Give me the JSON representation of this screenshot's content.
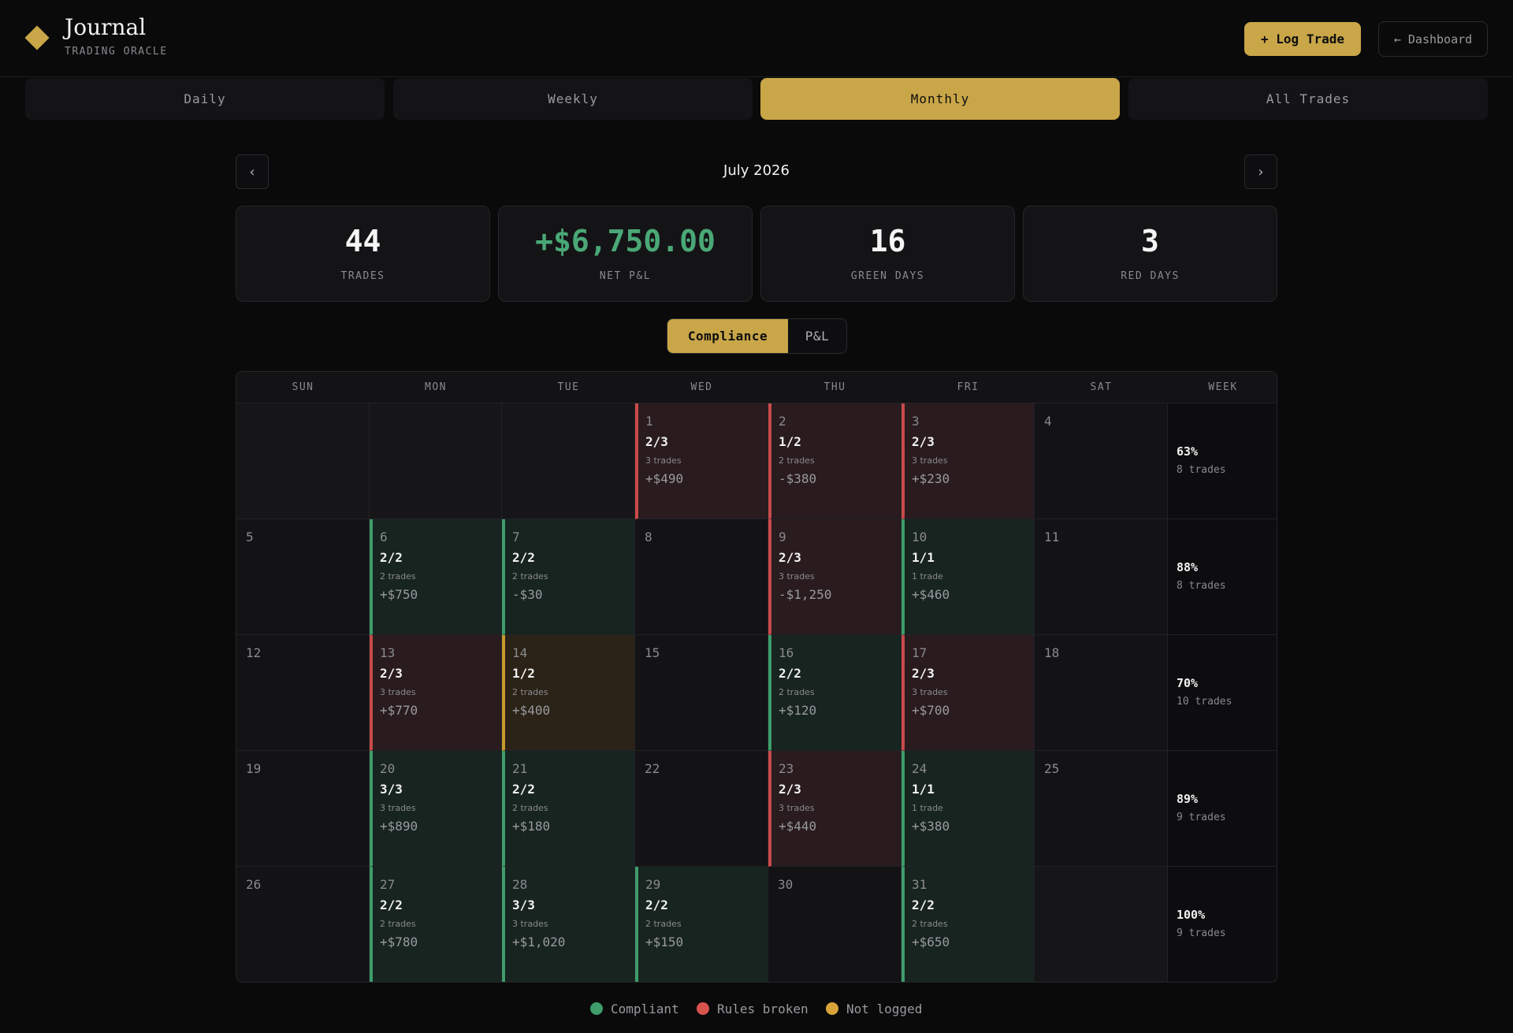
{
  "header": {
    "title": "Journal",
    "subtitle": "TRADING ORACLE",
    "log_trade_label": "+ Log Trade",
    "dashboard_label": "← Dashboard"
  },
  "tabs": [
    {
      "label": "Daily",
      "active": false
    },
    {
      "label": "Weekly",
      "active": false
    },
    {
      "label": "Monthly",
      "active": true
    },
    {
      "label": "All Trades",
      "active": false
    }
  ],
  "month": {
    "title": "July 2026",
    "prev_label": "‹",
    "next_label": "›"
  },
  "stats": [
    {
      "value": "44",
      "label": "TRADES",
      "tone": "white"
    },
    {
      "value": "+$6,750.00",
      "label": "NET P&L",
      "tone": "green"
    },
    {
      "value": "16",
      "label": "GREEN DAYS",
      "tone": "white"
    },
    {
      "value": "3",
      "label": "RED DAYS",
      "tone": "white"
    }
  ],
  "view_toggle": {
    "active_label": "Compliance",
    "inactive_label": "P&L"
  },
  "calendar": {
    "headers": [
      "SUN",
      "MON",
      "TUE",
      "WED",
      "THU",
      "FRI",
      "SAT",
      "WEEK"
    ],
    "weeks": [
      {
        "days": [
          {
            "day": "",
            "status": "blank"
          },
          {
            "day": "",
            "status": "blank"
          },
          {
            "day": "",
            "status": "blank"
          },
          {
            "day": "1",
            "status": "red",
            "ratio": "2/3",
            "trades": "3 trades",
            "pnl": "+$490"
          },
          {
            "day": "2",
            "status": "red",
            "ratio": "1/2",
            "trades": "2 trades",
            "pnl": "-$380"
          },
          {
            "day": "3",
            "status": "red",
            "ratio": "2/3",
            "trades": "3 trades",
            "pnl": "+$230"
          },
          {
            "day": "4",
            "status": "empty"
          }
        ],
        "summary": {
          "pct": "63%",
          "trades": "8 trades"
        }
      },
      {
        "days": [
          {
            "day": "5",
            "status": "empty"
          },
          {
            "day": "6",
            "status": "green",
            "ratio": "2/2",
            "trades": "2 trades",
            "pnl": "+$750"
          },
          {
            "day": "7",
            "status": "green",
            "ratio": "2/2",
            "trades": "2 trades",
            "pnl": "-$30"
          },
          {
            "day": "8",
            "status": "empty"
          },
          {
            "day": "9",
            "status": "red",
            "ratio": "2/3",
            "trades": "3 trades",
            "pnl": "-$1,250"
          },
          {
            "day": "10",
            "status": "green",
            "ratio": "1/1",
            "trades": "1 trade",
            "pnl": "+$460"
          },
          {
            "day": "11",
            "status": "empty"
          }
        ],
        "summary": {
          "pct": "88%",
          "trades": "8 trades"
        }
      },
      {
        "days": [
          {
            "day": "12",
            "status": "empty"
          },
          {
            "day": "13",
            "status": "red",
            "ratio": "2/3",
            "trades": "3 trades",
            "pnl": "+$770"
          },
          {
            "day": "14",
            "status": "amber",
            "ratio": "1/2",
            "trades": "2 trades",
            "pnl": "+$400"
          },
          {
            "day": "15",
            "status": "empty"
          },
          {
            "day": "16",
            "status": "green",
            "ratio": "2/2",
            "trades": "2 trades",
            "pnl": "+$120"
          },
          {
            "day": "17",
            "status": "red",
            "ratio": "2/3",
            "trades": "3 trades",
            "pnl": "+$700"
          },
          {
            "day": "18",
            "status": "empty"
          }
        ],
        "summary": {
          "pct": "70%",
          "trades": "10 trades"
        }
      },
      {
        "days": [
          {
            "day": "19",
            "status": "empty"
          },
          {
            "day": "20",
            "status": "green",
            "ratio": "3/3",
            "trades": "3 trades",
            "pnl": "+$890"
          },
          {
            "day": "21",
            "status": "green",
            "ratio": "2/2",
            "trades": "2 trades",
            "pnl": "+$180"
          },
          {
            "day": "22",
            "status": "empty"
          },
          {
            "day": "23",
            "status": "red",
            "ratio": "2/3",
            "trades": "3 trades",
            "pnl": "+$440"
          },
          {
            "day": "24",
            "status": "green",
            "ratio": "1/1",
            "trades": "1 trade",
            "pnl": "+$380"
          },
          {
            "day": "25",
            "status": "empty"
          }
        ],
        "summary": {
          "pct": "89%",
          "trades": "9 trades"
        }
      },
      {
        "days": [
          {
            "day": "26",
            "status": "empty"
          },
          {
            "day": "27",
            "status": "green",
            "ratio": "2/2",
            "trades": "2 trades",
            "pnl": "+$780"
          },
          {
            "day": "28",
            "status": "green",
            "ratio": "3/3",
            "trades": "3 trades",
            "pnl": "+$1,020"
          },
          {
            "day": "29",
            "status": "green",
            "ratio": "2/2",
            "trades": "2 trades",
            "pnl": "+$150"
          },
          {
            "day": "30",
            "status": "empty"
          },
          {
            "day": "31",
            "status": "green",
            "ratio": "2/2",
            "trades": "2 trades",
            "pnl": "+$650"
          },
          {
            "day": "",
            "status": "blank"
          }
        ],
        "summary": {
          "pct": "100%",
          "trades": "9 trades"
        }
      }
    ]
  },
  "legend": [
    {
      "label": "Compliant",
      "color": "#3e9d6b"
    },
    {
      "label": "Rules broken",
      "color": "#d9534f"
    },
    {
      "label": "Not logged",
      "color": "#d9a33a"
    }
  ],
  "colors": {
    "accent": "#c9a648",
    "green": "#3e9d6b",
    "red": "#c94a4a",
    "amber": "#c99a2e"
  }
}
